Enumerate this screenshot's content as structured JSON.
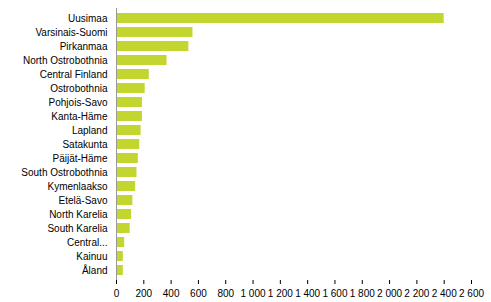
{
  "chart_data": {
    "type": "bar",
    "orientation": "horizontal",
    "color": "#c3d52f",
    "categories": [
      "Uusimaa",
      "Varsinais-Suomi",
      "Pirkanmaa",
      "North Ostrobothnia",
      "Central Finland",
      "Ostrobothnia",
      "Pohjois-Savo",
      "Kanta-Häme",
      "Lapland",
      "Satakunta",
      "Päijät-Häme",
      "South Ostrobothnia",
      "Kymenlaakso",
      "Etelä-Savo",
      "North Karelia",
      "South Karelia",
      "Central...",
      "Kainuu",
      "Åland"
    ],
    "values": [
      2400,
      560,
      530,
      370,
      240,
      210,
      190,
      190,
      180,
      170,
      160,
      150,
      140,
      120,
      110,
      100,
      60,
      50,
      50
    ],
    "xlim": [
      0,
      2600
    ],
    "xticks": [
      0,
      200,
      400,
      600,
      800,
      {
        "value": 1000,
        "label": "1 000"
      },
      {
        "value": 1200,
        "label": "1 200"
      },
      {
        "value": 1400,
        "label": "1 400"
      },
      {
        "value": 1600,
        "label": "1 600"
      },
      {
        "value": 1800,
        "label": "1 800"
      },
      {
        "value": 2000,
        "label": "2 000"
      },
      {
        "value": 2200,
        "label": "2 200"
      },
      {
        "value": 2400,
        "label": "2 400"
      },
      {
        "value": 2600,
        "label": "2 600"
      }
    ],
    "grid": false
  }
}
